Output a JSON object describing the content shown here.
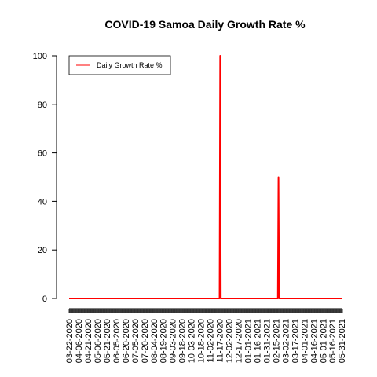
{
  "chart_data": {
    "type": "line",
    "title": "COVID-19 Samoa Daily Growth Rate %",
    "xlabel": "",
    "ylabel": "",
    "ylim": [
      0,
      100
    ],
    "y_ticks": [
      0,
      20,
      40,
      60,
      80,
      100
    ],
    "x_range": [
      "2020-03-22",
      "2021-06-01"
    ],
    "x_tick_labels": [
      "03-22-2020",
      "04-06-2020",
      "04-21-2020",
      "05-06-2020",
      "05-21-2020",
      "06-05-2020",
      "06-20-2020",
      "07-05-2020",
      "07-20-2020",
      "08-04-2020",
      "08-19-2020",
      "09-03-2020",
      "09-18-2020",
      "10-03-2020",
      "10-18-2020",
      "11-02-2020",
      "11-17-2020",
      "12-02-2020",
      "12-17-2020",
      "01-01-2021",
      "01-16-2021",
      "01-31-2021",
      "02-15-2021",
      "03-02-2021",
      "03-17-2021",
      "04-01-2021",
      "04-16-2021",
      "05-01-2021",
      "05-16-2021",
      "05-31-2021"
    ],
    "grid": false,
    "legend": {
      "position": "top-left",
      "entries": [
        "Daily Growth Rate %"
      ]
    },
    "colors": {
      "series": "#ff0000",
      "axis": "#000000",
      "tick_band": "#333333"
    },
    "series": [
      {
        "name": "Daily Growth Rate %",
        "x": [
          "2020-03-22",
          "2020-11-17",
          "2020-11-18",
          "2020-11-19",
          "2021-02-18",
          "2021-02-19",
          "2021-02-20",
          "2021-06-01"
        ],
        "values": [
          0,
          0,
          100,
          0,
          0,
          50,
          0,
          0
        ]
      }
    ]
  }
}
